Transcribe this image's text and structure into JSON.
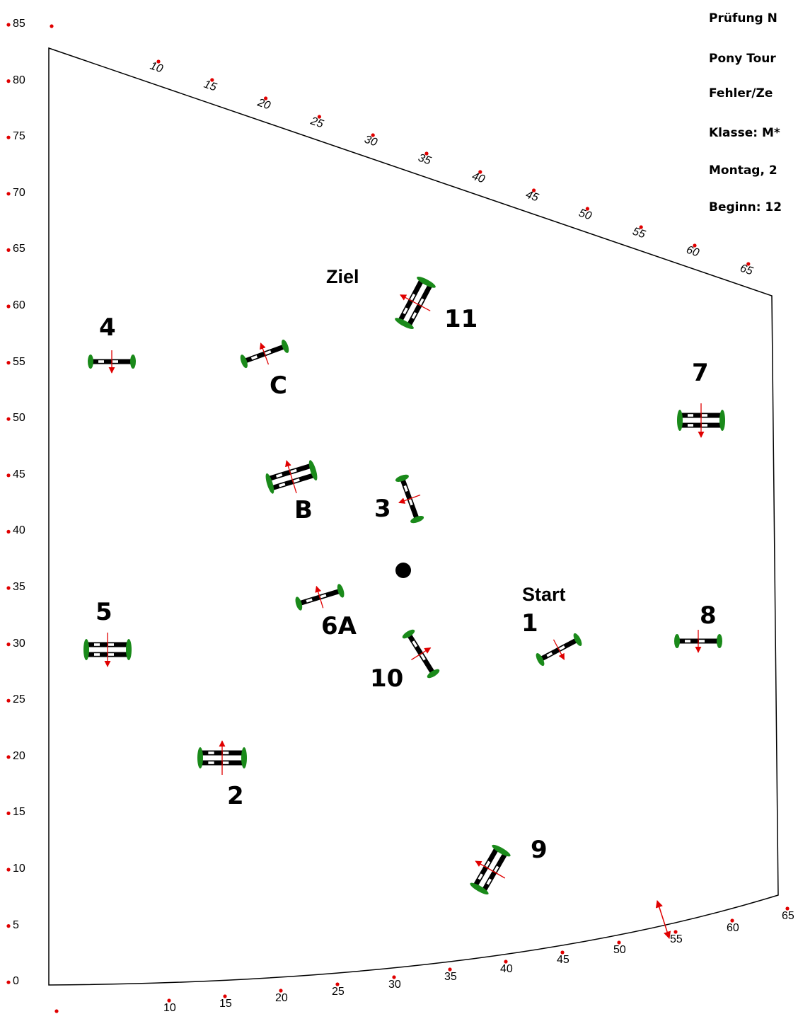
{
  "header_lines": [
    "Prüfung N",
    "Pony Tour",
    "Fehler/Ze",
    "Klasse: M*",
    "Montag, 2",
    "Beginn: 12"
  ],
  "y_scale": [
    "85",
    "80",
    "75",
    "70",
    "65",
    "60",
    "55",
    "50",
    "45",
    "40",
    "35",
    "30",
    "25",
    "20",
    "15",
    "10",
    "5",
    "0"
  ],
  "bottom_scale": [
    "10",
    "15",
    "20",
    "25",
    "30",
    "35",
    "40",
    "45",
    "50",
    "55",
    "60",
    "65"
  ],
  "top_scale": [
    "10",
    "15",
    "20",
    "25",
    "30",
    "35",
    "40",
    "45",
    "50",
    "55",
    "60",
    "65"
  ],
  "labels": {
    "ziel": "Ziel",
    "start": "Start"
  },
  "obstacles": [
    {
      "number": "1"
    },
    {
      "number": "2"
    },
    {
      "number": "3"
    },
    {
      "number": "4"
    },
    {
      "number": "5"
    },
    {
      "number": "6A"
    },
    {
      "number": "7"
    },
    {
      "number": "8"
    },
    {
      "number": "9"
    },
    {
      "number": "10"
    },
    {
      "number": "11"
    },
    {
      "number": "B"
    },
    {
      "number": "C"
    }
  ],
  "colors": {
    "arena_line": "#000000",
    "scale_dot": "#e00000",
    "arrow": "#e00000",
    "wing": "#1a8a1a",
    "rail_dark": "#000000",
    "rail_light": "#ffffff"
  }
}
